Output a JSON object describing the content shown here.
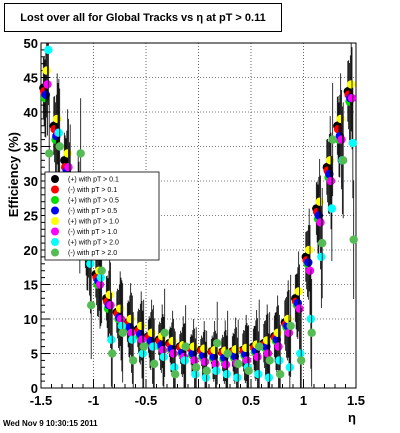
{
  "header": {
    "title": "Lost over all for Global Tracks vs  η at pT > 0.11"
  },
  "footer": {
    "timestamp": "Wed Nov  9 10:30:15 2011"
  },
  "chart_data": {
    "type": "scatter",
    "title": "Lost over all for Global Tracks vs  η at pT > 0.11",
    "xlabel": "η",
    "ylabel": "Efficiency (%)",
    "xlim": [
      -1.5,
      1.5
    ],
    "ylim": [
      0,
      50
    ],
    "x_ticks": [
      -1.5,
      -1,
      -0.5,
      0,
      0.5,
      1,
      1.5
    ],
    "x_tick_labels": [
      "-1.5",
      "-1",
      "-0.5",
      "0",
      "0.5",
      "1",
      "1.5"
    ],
    "y_ticks": [
      0,
      5,
      10,
      15,
      20,
      25,
      30,
      35,
      40,
      45,
      50
    ],
    "y_tick_labels": [
      "0",
      "5",
      "10",
      "15",
      "20",
      "25",
      "30",
      "35",
      "40",
      "45",
      "50"
    ],
    "grid": true,
    "legend_position": "left-middle",
    "series": [
      {
        "name": "(+) with pT > 0.1",
        "color": "#000000",
        "x": [
          -1.45,
          -1.35,
          -1.25,
          -1.15,
          -1.05,
          -0.95,
          -0.85,
          -0.75,
          -0.65,
          -0.55,
          -0.45,
          -0.35,
          -0.25,
          -0.15,
          -0.05,
          0.05,
          0.15,
          0.25,
          0.35,
          0.45,
          0.55,
          0.65,
          0.75,
          0.85,
          0.95,
          1.05,
          1.15,
          1.25,
          1.35,
          1.45
        ],
        "y": [
          43.5,
          38,
          33,
          27,
          21,
          16.5,
          13,
          11,
          9.5,
          8.5,
          7.5,
          7,
          6.5,
          6,
          5.8,
          5.5,
          5.3,
          5.2,
          5.3,
          5.5,
          6,
          6.5,
          7.5,
          9.5,
          13,
          19,
          26,
          32,
          38,
          43
        ]
      },
      {
        "name": "(-) with pT > 0.1",
        "color": "#ff0000",
        "x": [
          -1.45,
          -1.35,
          -1.25,
          -1.15,
          -1.05,
          -0.95,
          -0.85,
          -0.75,
          -0.65,
          -0.55,
          -0.45,
          -0.35,
          -0.25,
          -0.15,
          -0.05,
          0.05,
          0.15,
          0.25,
          0.35,
          0.45,
          0.55,
          0.65,
          0.75,
          0.85,
          0.95,
          1.05,
          1.15,
          1.25,
          1.35,
          1.45
        ],
        "y": [
          43,
          37.5,
          32,
          26.5,
          20.5,
          16,
          12.5,
          10.8,
          9.3,
          8.3,
          7.4,
          6.8,
          6.3,
          5.9,
          5.6,
          5.4,
          5.2,
          5.1,
          5.2,
          5.4,
          5.8,
          6.3,
          7.3,
          9.2,
          12.5,
          18.5,
          25.5,
          31.5,
          37.5,
          42.5
        ]
      },
      {
        "name": "(+) with pT > 0.5",
        "color": "#00dd00",
        "x": [
          -1.45,
          -1.35,
          -1.25,
          -1.15,
          -1.05,
          -0.95,
          -0.85,
          -0.75,
          -0.65,
          -0.55,
          -0.45,
          -0.35,
          -0.25,
          -0.15,
          -0.05,
          0.05,
          0.15,
          0.25,
          0.35,
          0.45,
          0.55,
          0.65,
          0.75,
          0.85,
          0.95,
          1.05,
          1.15,
          1.25,
          1.35,
          1.45
        ],
        "y": [
          42,
          36,
          31,
          25,
          19,
          15,
          11.5,
          10,
          8.5,
          7.5,
          6.5,
          6,
          5.5,
          5,
          4.8,
          4.5,
          4.3,
          4.2,
          4.4,
          4.7,
          5.2,
          5.8,
          6.8,
          8.8,
          12,
          18,
          24.5,
          30.5,
          36,
          41.5
        ]
      },
      {
        "name": "(-) with pT > 0.5",
        "color": "#0000ff",
        "x": [
          -1.45,
          -1.35,
          -1.25,
          -1.15,
          -1.05,
          -0.95,
          -0.85,
          -0.75,
          -0.65,
          -0.55,
          -0.45,
          -0.35,
          -0.25,
          -0.15,
          -0.05,
          0.05,
          0.15,
          0.25,
          0.35,
          0.45,
          0.55,
          0.65,
          0.75,
          0.85,
          0.95,
          1.05,
          1.15,
          1.25,
          1.35,
          1.45
        ],
        "y": [
          42.5,
          36.5,
          31.5,
          25.5,
          19.5,
          15.5,
          12,
          10.2,
          8.8,
          7.8,
          6.8,
          6.2,
          5.7,
          5.2,
          5,
          4.7,
          4.5,
          4.4,
          4.6,
          4.9,
          5.4,
          6,
          7,
          9,
          12.3,
          18.2,
          25,
          31,
          36.5,
          42
        ]
      },
      {
        "name": "(+) with pT > 1.0",
        "color": "#ffff00",
        "x": [
          -1.45,
          -1.35,
          -1.25,
          -1.15,
          -1.05,
          -0.95,
          -0.85,
          -0.75,
          -0.65,
          -0.55,
          -0.45,
          -0.35,
          -0.25,
          -0.15,
          -0.05,
          0.05,
          0.15,
          0.25,
          0.35,
          0.45,
          0.55,
          0.65,
          0.75,
          0.85,
          0.95,
          1.05,
          1.15,
          1.25,
          1.35,
          1.45
        ],
        "y": [
          46,
          39,
          34,
          28,
          22,
          17,
          13.5,
          11.5,
          10,
          9,
          8,
          7.5,
          6.8,
          6.2,
          6,
          5.7,
          5.5,
          5.4,
          5.6,
          5.8,
          6.3,
          6.9,
          8,
          10,
          14,
          20,
          27,
          33,
          39,
          44
        ]
      },
      {
        "name": "(-) with pT > 1.0",
        "color": "#ff00ff",
        "x": [
          -1.45,
          -1.35,
          -1.25,
          -1.15,
          -1.05,
          -0.95,
          -0.85,
          -0.75,
          -0.65,
          -0.55,
          -0.45,
          -0.35,
          -0.25,
          -0.15,
          -0.05,
          0.05,
          0.15,
          0.25,
          0.35,
          0.45,
          0.55,
          0.65,
          0.75,
          0.85,
          0.95,
          1.05,
          1.15,
          1.25,
          1.35,
          1.45
        ],
        "y": [
          44,
          37,
          32,
          26,
          20,
          15,
          12,
          10,
          8,
          7,
          6,
          5.5,
          5,
          4.5,
          4,
          3.8,
          3.5,
          3.4,
          3.6,
          4,
          4.5,
          5,
          6,
          8,
          11.5,
          17,
          24,
          30,
          36,
          42
        ]
      },
      {
        "name": "(+) with pT > 2.0",
        "color": "#00ffff",
        "x": [
          -1.45,
          -1.35,
          -1.25,
          -1.15,
          -1.05,
          -0.95,
          -0.85,
          -0.75,
          -0.65,
          -0.55,
          -0.45,
          -0.35,
          -0.25,
          -0.15,
          -0.05,
          0.05,
          0.15,
          0.25,
          0.35,
          0.45,
          0.55,
          0.65,
          0.75,
          0.85,
          0.95,
          1.05,
          1.15,
          1.25,
          1.35,
          1.45
        ],
        "y": [
          49,
          37,
          28,
          24,
          18,
          16,
          7,
          9,
          7,
          5,
          6,
          4.5,
          3,
          4,
          2,
          1.5,
          2.5,
          2,
          1.5,
          3,
          2,
          1.5,
          4,
          3,
          5,
          10,
          19,
          26,
          33,
          35.5
        ]
      },
      {
        "name": "(-) with pT > 2.0",
        "color": "#55bb55",
        "x": [
          -1.45,
          -1.35,
          -1.25,
          -1.15,
          -1.05,
          -0.95,
          -0.85,
          -0.75,
          -0.65,
          -0.55,
          -0.45,
          -0.35,
          -0.25,
          -0.15,
          -0.05,
          0.05,
          0.15,
          0.25,
          0.35,
          0.45,
          0.55,
          0.65,
          0.75,
          0.85,
          0.95,
          1.05,
          1.15,
          1.25,
          1.35,
          1.45
        ],
        "y": [
          34,
          35,
          30,
          34,
          12,
          17,
          5,
          8,
          4,
          6,
          3.5,
          8,
          2,
          6,
          3,
          2.5,
          6.5,
          5,
          3.5,
          2.5,
          6,
          4,
          2,
          9,
          4,
          8,
          21,
          36,
          33,
          21.5
        ]
      }
    ]
  }
}
